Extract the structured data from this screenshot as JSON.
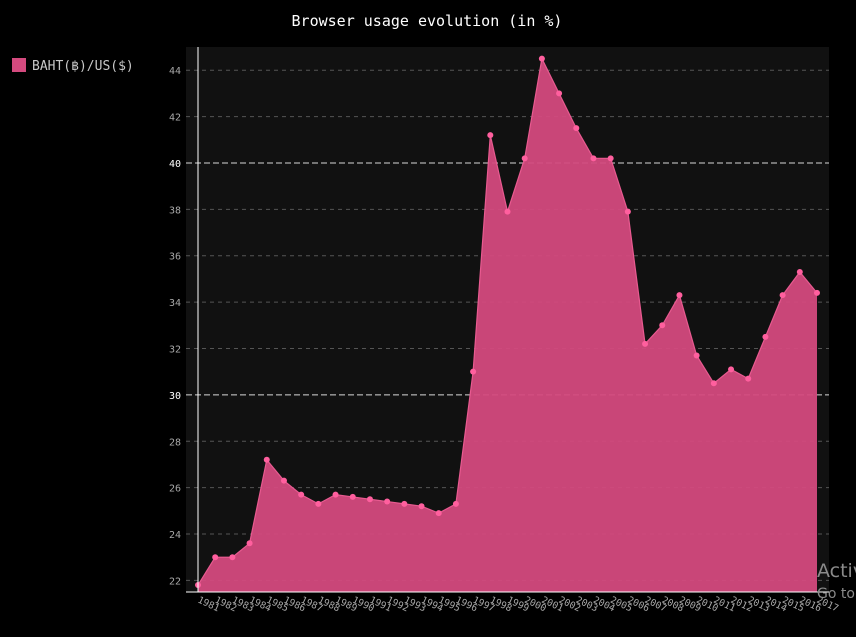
{
  "chart_data": {
    "type": "area",
    "title": "Browser usage evolution (in %)",
    "xlabel": "",
    "ylabel": "",
    "ylim": [
      21.5,
      45
    ],
    "y_ticks": [
      22,
      24,
      26,
      28,
      30,
      32,
      34,
      36,
      38,
      40,
      42,
      44
    ],
    "major_y_ticks": [
      30,
      40
    ],
    "grid": true,
    "legend_position": "left",
    "categories": [
      "1981",
      "1982",
      "1983",
      "1984",
      "1985",
      "1986",
      "1987",
      "1988",
      "1989",
      "1990",
      "1991",
      "1992",
      "1993",
      "1994",
      "1995",
      "1996",
      "1997",
      "1998",
      "1999",
      "2000",
      "2001",
      "2002",
      "2003",
      "2004",
      "2005",
      "2006",
      "2007",
      "2008",
      "2009",
      "2010",
      "2011",
      "2012",
      "2013",
      "2014",
      "2015",
      "2016",
      "2017"
    ],
    "series": [
      {
        "name": "BAHT(฿)/US($)",
        "color": "#d44a7e",
        "values": [
          21.8,
          23.0,
          23.0,
          23.6,
          27.2,
          26.3,
          25.7,
          25.3,
          25.7,
          25.6,
          25.5,
          25.4,
          25.3,
          25.2,
          24.9,
          25.3,
          31.0,
          41.2,
          37.9,
          40.2,
          44.5,
          43.0,
          41.5,
          40.2,
          40.2,
          37.9,
          32.2,
          33.0,
          34.3,
          31.7,
          30.5,
          31.1,
          30.7,
          32.5,
          34.3,
          35.3,
          34.4
        ]
      }
    ]
  },
  "watermark": {
    "line1": "Activ",
    "line2": "Go to"
  }
}
